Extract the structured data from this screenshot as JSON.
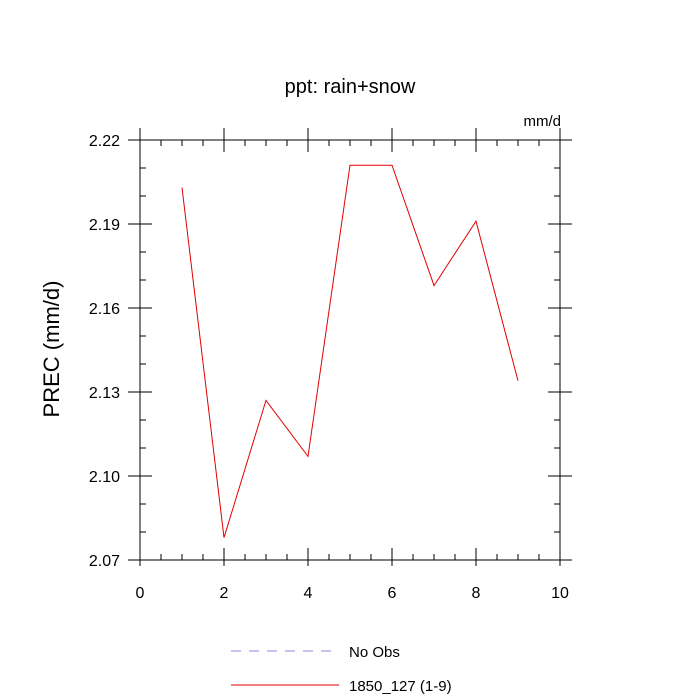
{
  "chart_data": {
    "type": "line",
    "title": "ppt: rain+snow",
    "units_label": "mm/d",
    "ylabel": "PREC  (mm/d)",
    "xlabel": "",
    "xlim": [
      0,
      10
    ],
    "ylim": [
      2.07,
      2.22
    ],
    "x_ticks": [
      0,
      2,
      4,
      6,
      8,
      10
    ],
    "x_tick_labels": [
      "0",
      "2",
      "4",
      "6",
      "8",
      "10"
    ],
    "y_ticks": [
      2.07,
      2.1,
      2.13,
      2.16,
      2.19,
      2.22
    ],
    "y_tick_labels": [
      "2.07",
      "2.10",
      "2.13",
      "2.16",
      "2.19",
      "2.22"
    ],
    "grid": false,
    "legend_placement": "bottom",
    "series": [
      {
        "name": "No Obs",
        "color": "#8888dd",
        "dashed": true,
        "x": [],
        "values": []
      },
      {
        "name": "1850_127 (1-9)",
        "color": "#e00000",
        "dashed": false,
        "x": [
          1,
          2,
          3,
          4,
          5,
          6,
          7,
          8,
          9
        ],
        "values": [
          2.203,
          2.078,
          2.127,
          2.107,
          2.211,
          2.211,
          2.168,
          2.191,
          2.134
        ]
      }
    ]
  }
}
